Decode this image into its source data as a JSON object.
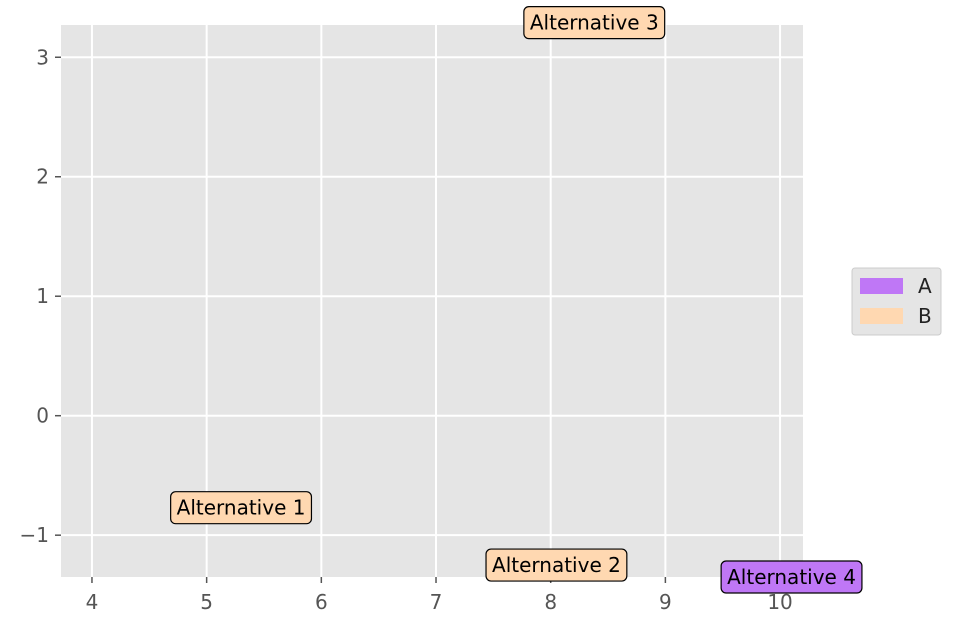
{
  "chart_data": {
    "type": "scatter",
    "title": "",
    "xlabel": "",
    "ylabel": "",
    "xlim": [
      3.73,
      10.2
    ],
    "ylim": [
      -1.35,
      3.27
    ],
    "xticks": [
      4,
      5,
      6,
      7,
      8,
      9,
      10
    ],
    "yticks": [
      -1,
      0,
      1,
      2,
      3
    ],
    "xtick_labels": [
      "4",
      "5",
      "6",
      "7",
      "8",
      "9",
      "10"
    ],
    "ytick_labels": [
      "−1",
      "0",
      "1",
      "2",
      "3"
    ],
    "grid": true,
    "legend_position": "center-right",
    "series": [
      {
        "name": "A",
        "color": "#bf77f6"
      },
      {
        "name": "B",
        "color": "#ffd8b1"
      }
    ],
    "points": [
      {
        "label": "Alternative 1",
        "x": 5.3,
        "y": -0.77,
        "series": "B"
      },
      {
        "label": "Alternative 2",
        "x": 8.05,
        "y": -1.25,
        "series": "B"
      },
      {
        "label": "Alternative 3",
        "x": 8.38,
        "y": 3.29,
        "series": "B"
      },
      {
        "label": "Alternative 4",
        "x": 10.1,
        "y": -1.35,
        "series": "A"
      }
    ]
  }
}
